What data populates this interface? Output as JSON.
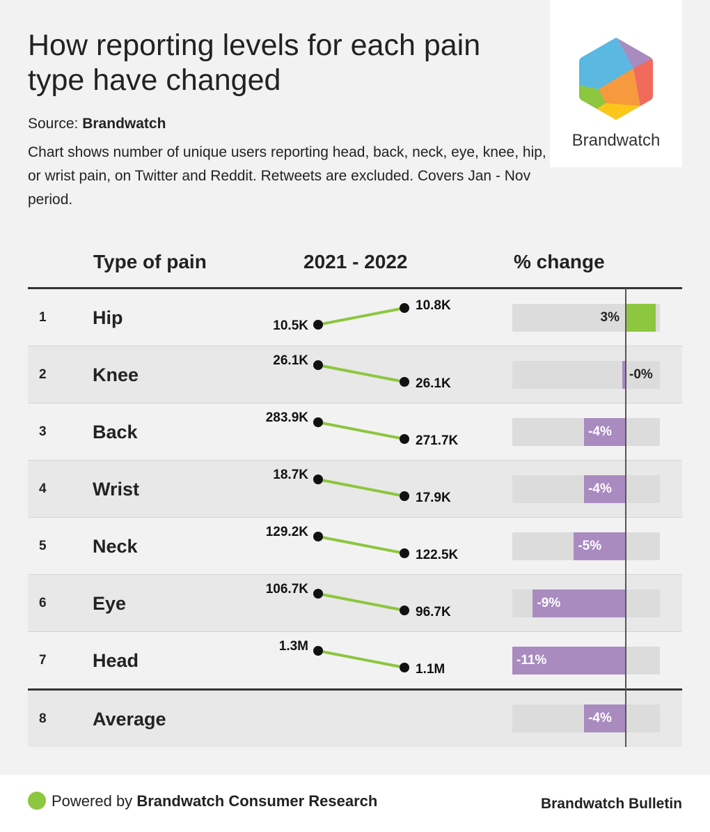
{
  "title": "How reporting levels for each pain type have changed",
  "source_label": "Source:",
  "source_name": "Brandwatch",
  "description": "Chart shows number of unique users reporting head, back, neck, eye, knee, hip, or wrist pain, on Twitter and Reddit. Retweets are excluded. Covers Jan - Nov period.",
  "logo_text": "Brandwatch",
  "headers": {
    "type": "Type of pain",
    "years": "2021 - 2022",
    "change": "% change"
  },
  "colors": {
    "slope_line": "#8dc63f",
    "positive_bar": "#8dc63f",
    "negative_bar": "#a98bc0",
    "track": "#dcdcdc"
  },
  "chart_data": {
    "type": "table",
    "columns": [
      "Type of pain",
      "2021",
      "2022",
      "% change"
    ],
    "rows": [
      {
        "rank": "1",
        "name": "Hip",
        "v2021": 10.5,
        "v2022": 10.8,
        "label2021": "10.5K",
        "label2022": "10.8K",
        "pct": 3,
        "pct_label": "3%"
      },
      {
        "rank": "2",
        "name": "Knee",
        "v2021": 26.1,
        "v2022": 26.1,
        "label2021": "26.1K",
        "label2022": "26.1K",
        "pct": -0.3,
        "pct_label": "-0%"
      },
      {
        "rank": "3",
        "name": "Back",
        "v2021": 283.9,
        "v2022": 271.7,
        "label2021": "283.9K",
        "label2022": "271.7K",
        "pct": -4,
        "pct_label": "-4%"
      },
      {
        "rank": "4",
        "name": "Wrist",
        "v2021": 18.7,
        "v2022": 17.9,
        "label2021": "18.7K",
        "label2022": "17.9K",
        "pct": -4,
        "pct_label": "-4%"
      },
      {
        "rank": "5",
        "name": "Neck",
        "v2021": 129.2,
        "v2022": 122.5,
        "label2021": "129.2K",
        "label2022": "122.5K",
        "pct": -5,
        "pct_label": "-5%"
      },
      {
        "rank": "6",
        "name": "Eye",
        "v2021": 106.7,
        "v2022": 96.7,
        "label2021": "106.7K",
        "label2022": "96.7K",
        "pct": -9,
        "pct_label": "-9%"
      },
      {
        "rank": "7",
        "name": "Head",
        "v2021": 1300,
        "v2022": 1100,
        "label2021": "1.3M",
        "label2022": "1.1M",
        "pct": -11,
        "pct_label": "-11%"
      }
    ],
    "average": {
      "rank": "8",
      "name": "Average",
      "pct": -4,
      "pct_label": "-4%"
    },
    "pct_scale_min": -11
  },
  "footer": {
    "prefix": "Powered by",
    "brand": "Brandwatch Consumer Research",
    "right": "Brandwatch Bulletin"
  }
}
